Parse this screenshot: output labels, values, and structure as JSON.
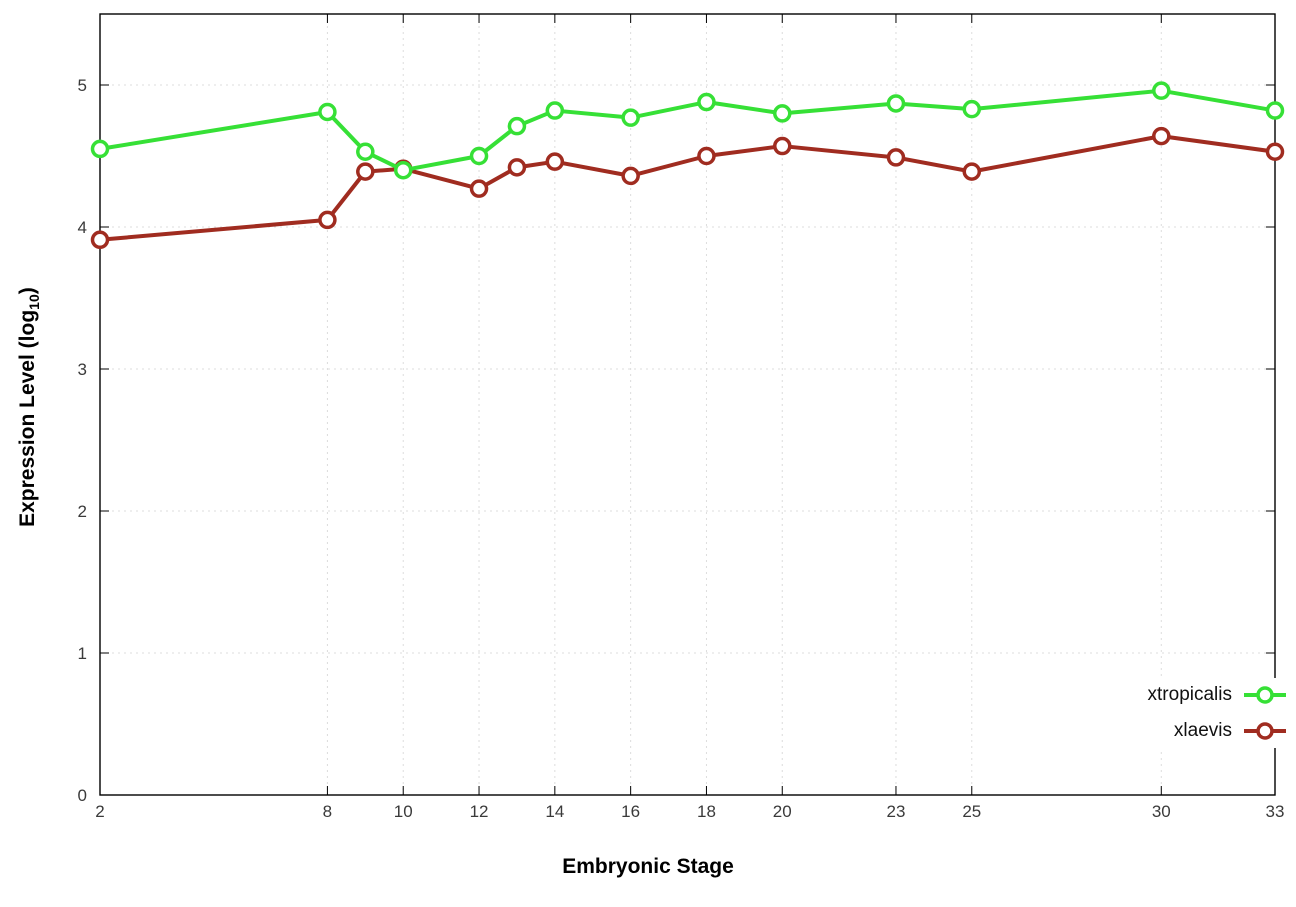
{
  "chart_data": {
    "type": "line",
    "title": "",
    "xlabel": "Embryonic Stage",
    "ylabel_main": "Expression Level (log",
    "ylabel_sub": "10",
    "ylabel_close": ")",
    "x": [
      2,
      8,
      9,
      10,
      12,
      13,
      14,
      16,
      18,
      20,
      23,
      25,
      30,
      33
    ],
    "x_tick_labels": [
      2,
      8,
      10,
      12,
      14,
      16,
      18,
      20,
      23,
      25,
      30,
      33
    ],
    "y_tick_labels": [
      0,
      1,
      2,
      3,
      4,
      5
    ],
    "xlim": [
      2,
      33
    ],
    "ylim": [
      0,
      5.5
    ],
    "grid": true,
    "legend_position": "bottom-right",
    "marker": "open-circle",
    "series": [
      {
        "name": "xtropicalis",
        "color": "#36e036",
        "values": [
          4.55,
          4.81,
          4.53,
          4.4,
          4.5,
          4.71,
          4.82,
          4.77,
          4.88,
          4.8,
          4.87,
          4.83,
          4.96,
          4.82
        ]
      },
      {
        "name": "xlaevis",
        "color": "#a02c20",
        "values": [
          3.91,
          4.05,
          4.39,
          4.41,
          4.27,
          4.42,
          4.46,
          4.36,
          4.5,
          4.57,
          4.49,
          4.39,
          4.64,
          4.53
        ]
      }
    ],
    "colors": {
      "grid": "#dcdcdc",
      "border": "#000000",
      "tick_text": "#3a3a3a",
      "marker_fill": "#ffffff"
    }
  }
}
